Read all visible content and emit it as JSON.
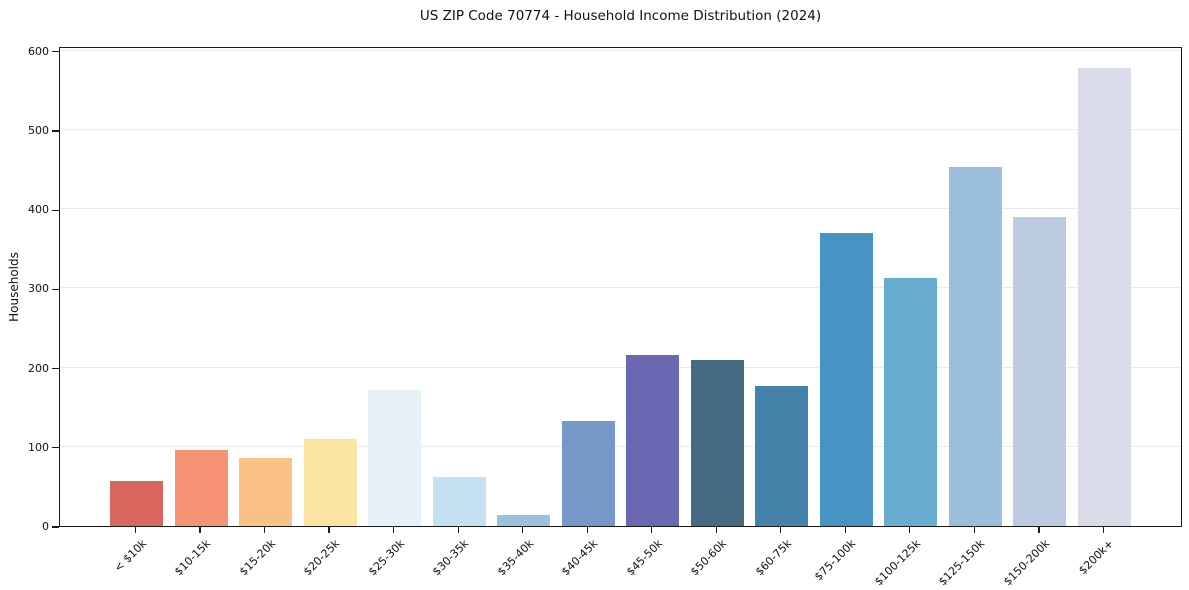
{
  "chart_data": {
    "type": "bar",
    "title": "US ZIP Code 70774 - Household Income Distribution (2024)",
    "xlabel": "",
    "ylabel": "Households",
    "categories": [
      "< $10k",
      "$10-15k",
      "$15-20k",
      "$20-25k",
      "$25-30k",
      "$30-35k",
      "$35-40k",
      "$40-45k",
      "$45-50k",
      "$50-60k",
      "$60-75k",
      "$75-100k",
      "$100-125k",
      "$125-150k",
      "$150-200k",
      "$200k+"
    ],
    "values": [
      57,
      96,
      86,
      110,
      172,
      62,
      14,
      132,
      216,
      210,
      177,
      370,
      313,
      453,
      390,
      578
    ],
    "bar_colors": [
      "#d75b52",
      "#f48b69",
      "#fbbc7e",
      "#fce29c",
      "#e4f1f6",
      "#bfdfee",
      "#90bddb",
      "#6b92c5",
      "#5f5caa",
      "#375f78",
      "#3779a3",
      "#388cbf",
      "#5da7cb",
      "#93b9da",
      "#b6c8e0",
      "#d7d9e7"
    ],
    "ylim": [
      0,
      606
    ],
    "yticks": [
      0,
      100,
      200,
      300,
      400,
      500,
      600
    ],
    "grid": "horizontal",
    "legend": "none"
  },
  "colors": {
    "background": "#ffffff",
    "gridline": "#e9e9ef",
    "spine": "#1a1a1a",
    "text": "#111111"
  }
}
